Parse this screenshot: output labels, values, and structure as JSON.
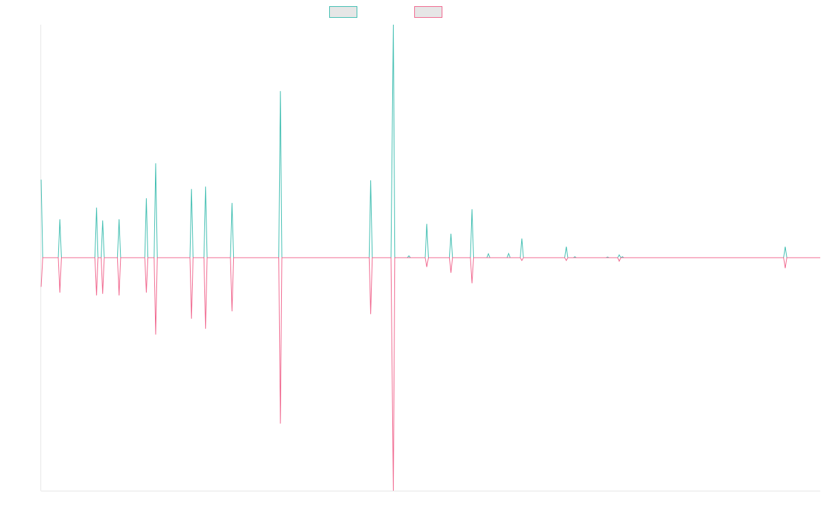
{
  "chart_data": {
    "type": "line",
    "title": "",
    "xlabel": "",
    "ylabel": "",
    "legend_placement": "top-center",
    "grid": false,
    "xlim": [
      0,
      1
    ],
    "ylim": [
      -1,
      1
    ],
    "series": [
      {
        "color": "#3dbdb0",
        "legend_fill": "#e6e6e6",
        "values": [
          [
            0.0,
            0.335
          ],
          [
            0.002,
            0.0
          ],
          [
            0.022,
            0.0
          ],
          [
            0.024,
            0.165
          ],
          [
            0.026,
            0.0
          ],
          [
            0.069,
            0.0
          ],
          [
            0.071,
            0.215
          ],
          [
            0.073,
            0.0
          ],
          [
            0.077,
            0.0
          ],
          [
            0.079,
            0.16
          ],
          [
            0.081,
            0.0
          ],
          [
            0.098,
            0.0
          ],
          [
            0.1,
            0.165
          ],
          [
            0.102,
            0.0
          ],
          [
            0.133,
            0.0
          ],
          [
            0.135,
            0.255
          ],
          [
            0.137,
            0.0
          ],
          [
            0.145,
            0.0
          ],
          [
            0.147,
            0.405
          ],
          [
            0.149,
            0.0
          ],
          [
            0.191,
            0.0
          ],
          [
            0.193,
            0.295
          ],
          [
            0.195,
            0.0
          ],
          [
            0.209,
            0.0
          ],
          [
            0.211,
            0.305
          ],
          [
            0.213,
            0.0
          ],
          [
            0.243,
            0.0
          ],
          [
            0.245,
            0.235
          ],
          [
            0.247,
            0.0
          ],
          [
            0.305,
            0.0
          ],
          [
            0.307,
            0.715
          ],
          [
            0.309,
            0.0
          ],
          [
            0.421,
            0.0
          ],
          [
            0.423,
            0.332
          ],
          [
            0.425,
            0.0
          ],
          [
            0.449,
            0.0
          ],
          [
            0.452,
            1.0
          ],
          [
            0.454,
            0.0
          ],
          [
            0.47,
            0.0
          ],
          [
            0.472,
            0.008
          ],
          [
            0.474,
            0.0
          ],
          [
            0.493,
            0.0
          ],
          [
            0.495,
            0.145
          ],
          [
            0.497,
            0.0
          ],
          [
            0.524,
            0.0
          ],
          [
            0.526,
            0.103
          ],
          [
            0.528,
            0.0
          ],
          [
            0.551,
            0.0
          ],
          [
            0.553,
            0.208
          ],
          [
            0.555,
            0.0
          ],
          [
            0.572,
            0.0
          ],
          [
            0.574,
            0.017
          ],
          [
            0.576,
            0.0
          ],
          [
            0.598,
            0.0
          ],
          [
            0.6,
            0.018
          ],
          [
            0.602,
            0.0
          ],
          [
            0.615,
            0.0
          ],
          [
            0.617,
            0.082
          ],
          [
            0.619,
            0.0
          ],
          [
            0.672,
            0.0
          ],
          [
            0.674,
            0.047
          ],
          [
            0.676,
            0.0
          ],
          [
            0.683,
            0.0
          ],
          [
            0.685,
            0.004
          ],
          [
            0.687,
            0.0
          ],
          [
            0.725,
            0.0
          ],
          [
            0.727,
            0.003
          ],
          [
            0.729,
            0.0
          ],
          [
            0.74,
            0.0
          ],
          [
            0.742,
            0.012
          ],
          [
            0.744,
            0.0
          ],
          [
            0.746,
            0.004
          ],
          [
            0.748,
            0.0
          ],
          [
            0.953,
            0.0
          ],
          [
            0.955,
            0.047
          ],
          [
            0.957,
            0.0
          ],
          [
            1.0,
            0.0
          ]
        ]
      },
      {
        "color": "#f0648c",
        "legend_fill": "#e6e6e6",
        "values": [
          [
            0.0,
            -0.125
          ],
          [
            0.002,
            0.0
          ],
          [
            0.022,
            0.0
          ],
          [
            0.024,
            -0.15
          ],
          [
            0.026,
            0.0
          ],
          [
            0.069,
            0.0
          ],
          [
            0.071,
            -0.162
          ],
          [
            0.073,
            0.0
          ],
          [
            0.077,
            0.0
          ],
          [
            0.079,
            -0.155
          ],
          [
            0.081,
            0.0
          ],
          [
            0.098,
            0.0
          ],
          [
            0.1,
            -0.162
          ],
          [
            0.102,
            0.0
          ],
          [
            0.133,
            0.0
          ],
          [
            0.135,
            -0.15
          ],
          [
            0.137,
            0.0
          ],
          [
            0.145,
            0.0
          ],
          [
            0.147,
            -0.33
          ],
          [
            0.149,
            0.0
          ],
          [
            0.191,
            0.0
          ],
          [
            0.193,
            -0.262
          ],
          [
            0.195,
            0.0
          ],
          [
            0.209,
            0.0
          ],
          [
            0.211,
            -0.305
          ],
          [
            0.213,
            0.0
          ],
          [
            0.243,
            0.0
          ],
          [
            0.245,
            -0.23
          ],
          [
            0.247,
            0.0
          ],
          [
            0.305,
            0.0
          ],
          [
            0.307,
            -0.712
          ],
          [
            0.309,
            0.0
          ],
          [
            0.421,
            0.0
          ],
          [
            0.423,
            -0.242
          ],
          [
            0.425,
            0.0
          ],
          [
            0.449,
            0.0
          ],
          [
            0.452,
            -1.0
          ],
          [
            0.454,
            0.0
          ],
          [
            0.493,
            0.0
          ],
          [
            0.495,
            -0.04
          ],
          [
            0.497,
            0.0
          ],
          [
            0.524,
            0.0
          ],
          [
            0.526,
            -0.065
          ],
          [
            0.528,
            0.0
          ],
          [
            0.551,
            0.0
          ],
          [
            0.553,
            -0.11
          ],
          [
            0.555,
            0.0
          ],
          [
            0.615,
            0.0
          ],
          [
            0.617,
            -0.012
          ],
          [
            0.619,
            0.0
          ],
          [
            0.672,
            0.0
          ],
          [
            0.674,
            -0.012
          ],
          [
            0.676,
            0.0
          ],
          [
            0.74,
            0.0
          ],
          [
            0.742,
            -0.015
          ],
          [
            0.744,
            0.0
          ],
          [
            0.953,
            0.0
          ],
          [
            0.955,
            -0.045
          ],
          [
            0.957,
            0.0
          ],
          [
            1.0,
            0.0
          ]
        ]
      }
    ]
  }
}
